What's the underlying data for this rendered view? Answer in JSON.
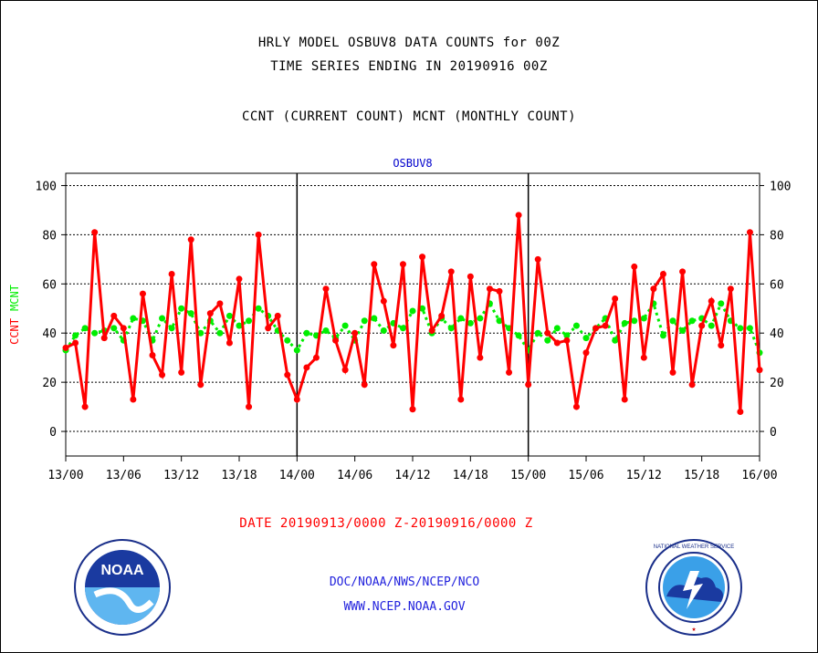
{
  "header": {
    "line1": "HRLY MODEL OSBUV8 DATA COUNTS for 00Z",
    "line2": "TIME SERIES ENDING IN 20190916 00Z",
    "line3": "CCNT (CURRENT COUNT) MCNT (MONTHLY COUNT)"
  },
  "footer": {
    "date_range": "DATE 20190913/0000 Z-20190916/0000 Z",
    "doc_line": "DOC/NOAA/NWS/NCEP/NCO",
    "url_line": "WWW.NCEP.NOAA.GOV"
  },
  "logos": {
    "noaa_text": "NOAA",
    "nws_text": "NATIONAL WEATHER SERVICE"
  },
  "chart_data": {
    "type": "line",
    "title": "OSBUV8",
    "ylabel_series": [
      "CCNT",
      "MCNT"
    ],
    "ylim": [
      -10,
      105
    ],
    "y_ticks": [
      0,
      20,
      40,
      60,
      80,
      100
    ],
    "x_tick_labels": [
      "13/00",
      "13/06",
      "13/12",
      "13/18",
      "14/00",
      "14/06",
      "14/12",
      "14/18",
      "15/00",
      "15/06",
      "15/12",
      "15/18",
      "16/00"
    ],
    "x_range_hours": [
      0,
      72
    ],
    "day_dividers_hours": [
      24,
      48
    ],
    "grid": true,
    "colors": {
      "ccnt": "#ff0000",
      "mcnt": "#00ee00",
      "title": "#0000cc"
    },
    "series": [
      {
        "name": "CCNT",
        "style": "solid-line-with-dots",
        "values": [
          34,
          36,
          10,
          81,
          38,
          47,
          42,
          13,
          56,
          31,
          23,
          64,
          24,
          78,
          19,
          48,
          52,
          36,
          62,
          10,
          80,
          42,
          47,
          23,
          13,
          26,
          30,
          58,
          37,
          25,
          40,
          19,
          68,
          53,
          35,
          68,
          9,
          71,
          41,
          47,
          65,
          13,
          63,
          30,
          58,
          57,
          24,
          88,
          19,
          70,
          40,
          36,
          37,
          10,
          32,
          42,
          43,
          54,
          13,
          67,
          30,
          58,
          64,
          24,
          65,
          19,
          43,
          53,
          35,
          58,
          8,
          81,
          25
        ]
      },
      {
        "name": "MCNT",
        "style": "dotted",
        "values": [
          33,
          39,
          42,
          40,
          41,
          42,
          37,
          46,
          45,
          37,
          46,
          42,
          50,
          48,
          40,
          45,
          40,
          47,
          43,
          45,
          50,
          47,
          41,
          37,
          33,
          40,
          39,
          41,
          38,
          43,
          37,
          45,
          46,
          41,
          44,
          42,
          49,
          50,
          40,
          46,
          42,
          46,
          44,
          46,
          52,
          45,
          42,
          39,
          33,
          40,
          37,
          42,
          39,
          43,
          38,
          42,
          46,
          37,
          44,
          45,
          46,
          52,
          39,
          45,
          41,
          45,
          46,
          43,
          52,
          45,
          42,
          42,
          32
        ]
      }
    ]
  }
}
